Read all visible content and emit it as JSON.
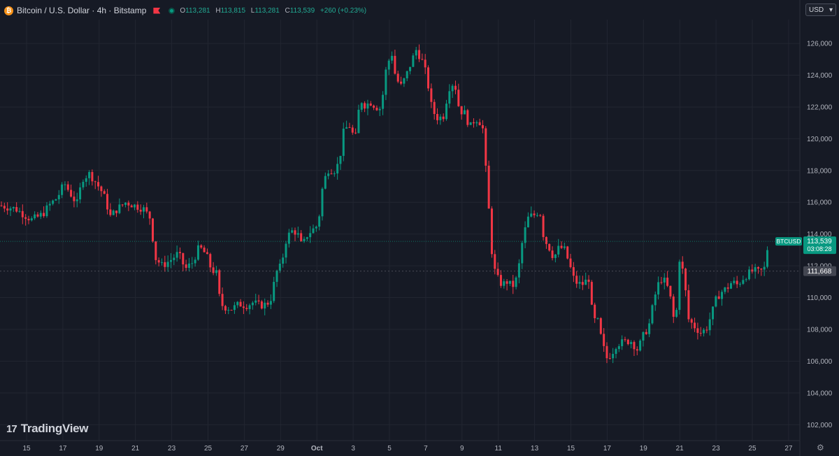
{
  "header": {
    "coin_icon": "bitcoin-icon",
    "coin_glyph": "₿",
    "title": "Bitcoin / U.S. Dollar · 4h · Bitstamp",
    "o_label": "O",
    "o_value": "113,281",
    "h_label": "H",
    "h_value": "113,815",
    "l_label": "L",
    "l_value": "113,281",
    "c_label": "C",
    "c_value": "113,539",
    "change": "+260 (+0.23%)"
  },
  "currency_selector": {
    "value": "USD",
    "arrow": "▾"
  },
  "logo": {
    "mark": "17",
    "text": "TradingView"
  },
  "settings_icon": {
    "name": "gear-icon",
    "glyph": "⚙"
  },
  "colors": {
    "up": "#089981",
    "down": "#f23645",
    "background": "#161a25",
    "grid": "#222631",
    "text": "#b2b5be"
  },
  "chart_data": {
    "type": "candlestick",
    "symbol": "BTCUSD",
    "interval": "4h",
    "ylim": [
      101000,
      127500
    ],
    "y_ticks": [
      "102,000",
      "104,000",
      "106,000",
      "108,000",
      "110,000",
      "112,000",
      "114,000",
      "116,000",
      "118,000",
      "120,000",
      "122,000",
      "124,000",
      "126,000"
    ],
    "x_ticks": [
      "15",
      "17",
      "19",
      "21",
      "23",
      "25",
      "27",
      "29",
      "Oct",
      "3",
      "5",
      "7",
      "9",
      "11",
      "13",
      "15",
      "17",
      "19",
      "21",
      "23",
      "25",
      "27"
    ],
    "price_tag": {
      "label": "BTCUSD",
      "value": "113,539",
      "countdown": "03:08:28"
    },
    "crosshair_label": "111,668",
    "path": [
      [
        0,
        115800
      ],
      [
        10,
        115700
      ],
      [
        22,
        115600
      ],
      [
        35,
        115200
      ],
      [
        45,
        114900
      ],
      [
        55,
        115100
      ],
      [
        62,
        115300
      ],
      [
        70,
        115800
      ],
      [
        82,
        116300
      ],
      [
        92,
        117200
      ],
      [
        100,
        116600
      ],
      [
        110,
        115900
      ],
      [
        118,
        117500
      ],
      [
        128,
        117800
      ],
      [
        138,
        117200
      ],
      [
        148,
        116500
      ],
      [
        158,
        115100
      ],
      [
        168,
        115600
      ],
      [
        180,
        116000
      ],
      [
        192,
        115800
      ],
      [
        205,
        115600
      ],
      [
        215,
        115000
      ],
      [
        222,
        112500
      ],
      [
        232,
        112000
      ],
      [
        245,
        112400
      ],
      [
        255,
        112800
      ],
      [
        265,
        111800
      ],
      [
        275,
        112200
      ],
      [
        285,
        113200
      ],
      [
        295,
        112700
      ],
      [
        302,
        111800
      ],
      [
        310,
        111500
      ],
      [
        315,
        109600
      ],
      [
        322,
        109400
      ],
      [
        332,
        109300
      ],
      [
        342,
        109600
      ],
      [
        352,
        109500
      ],
      [
        362,
        109700
      ],
      [
        372,
        109500
      ],
      [
        382,
        109600
      ],
      [
        388,
        110000
      ],
      [
        395,
        111600
      ],
      [
        402,
        112000
      ],
      [
        410,
        113800
      ],
      [
        418,
        114200
      ],
      [
        425,
        114100
      ],
      [
        432,
        113200
      ],
      [
        440,
        114000
      ],
      [
        448,
        114300
      ],
      [
        455,
        114600
      ],
      [
        462,
        117200
      ],
      [
        470,
        118100
      ],
      [
        478,
        118000
      ],
      [
        485,
        118500
      ],
      [
        492,
        120600
      ],
      [
        500,
        120800
      ],
      [
        508,
        119900
      ],
      [
        515,
        122500
      ],
      [
        522,
        122100
      ],
      [
        530,
        122300
      ],
      [
        538,
        122000
      ],
      [
        545,
        121900
      ],
      [
        552,
        124300
      ],
      [
        560,
        125500
      ],
      [
        566,
        123800
      ],
      [
        574,
        123300
      ],
      [
        582,
        124100
      ],
      [
        588,
        124800
      ],
      [
        595,
        125600
      ],
      [
        603,
        125000
      ],
      [
        610,
        124000
      ],
      [
        618,
        121800
      ],
      [
        626,
        121300
      ],
      [
        634,
        121400
      ],
      [
        642,
        123200
      ],
      [
        650,
        123600
      ],
      [
        657,
        121800
      ],
      [
        665,
        121600
      ],
      [
        672,
        120700
      ],
      [
        680,
        121300
      ],
      [
        690,
        120900
      ],
      [
        698,
        116200
      ],
      [
        705,
        112000
      ],
      [
        712,
        111200
      ],
      [
        718,
        110800
      ],
      [
        725,
        111000
      ],
      [
        733,
        110700
      ],
      [
        740,
        111300
      ],
      [
        748,
        113800
      ],
      [
        756,
        115100
      ],
      [
        764,
        115200
      ],
      [
        772,
        115500
      ],
      [
        778,
        113700
      ],
      [
        785,
        113200
      ],
      [
        792,
        112500
      ],
      [
        800,
        113200
      ],
      [
        808,
        113000
      ],
      [
        815,
        112000
      ],
      [
        822,
        111000
      ],
      [
        832,
        110800
      ],
      [
        842,
        111200
      ],
      [
        848,
        108600
      ],
      [
        855,
        108500
      ],
      [
        862,
        107000
      ],
      [
        868,
        106200
      ],
      [
        875,
        106500
      ],
      [
        882,
        107100
      ],
      [
        892,
        107200
      ],
      [
        902,
        107300
      ],
      [
        912,
        106700
      ],
      [
        920,
        107600
      ],
      [
        928,
        108200
      ],
      [
        936,
        110000
      ],
      [
        944,
        111200
      ],
      [
        952,
        111000
      ],
      [
        958,
        110200
      ],
      [
        966,
        108000
      ],
      [
        972,
        112500
      ],
      [
        978,
        111400
      ],
      [
        985,
        108600
      ],
      [
        993,
        108200
      ],
      [
        1002,
        107800
      ],
      [
        1010,
        108000
      ],
      [
        1018,
        109000
      ],
      [
        1025,
        110000
      ],
      [
        1033,
        110400
      ],
      [
        1040,
        110600
      ],
      [
        1047,
        111000
      ],
      [
        1055,
        110800
      ],
      [
        1062,
        111200
      ],
      [
        1070,
        111500
      ],
      [
        1078,
        111700
      ],
      [
        1086,
        111600
      ],
      [
        1093,
        111800
      ],
      [
        1097,
        113000
      ],
      [
        1101,
        113539
      ]
    ]
  }
}
